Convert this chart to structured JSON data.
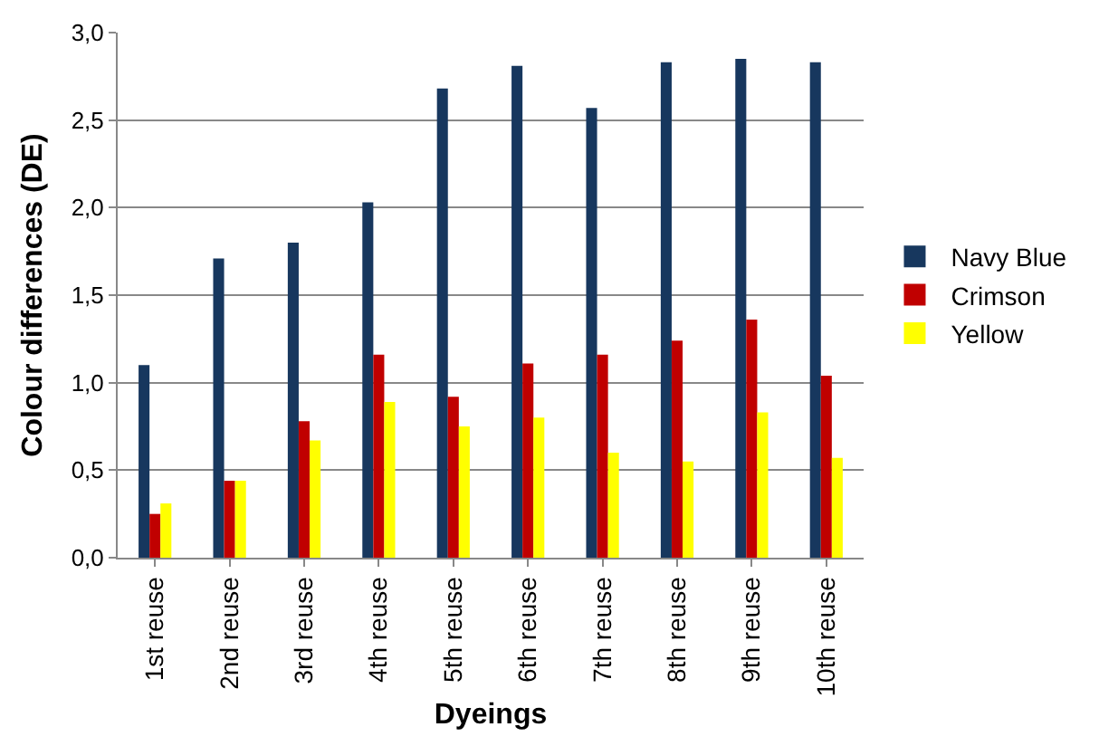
{
  "chart_data": {
    "type": "bar",
    "xlabel": "Dyeings",
    "ylabel": "Colour differences (DE)",
    "categories": [
      "1st reuse",
      "2nd reuse",
      "3rd reuse",
      "4th reuse",
      "5th reuse",
      "6th reuse",
      "7th reuse",
      "8th reuse",
      "9th reuse",
      "10th reuse"
    ],
    "series": [
      {
        "name": "Navy Blue",
        "color": "#17375e",
        "values": [
          1.1,
          1.71,
          1.8,
          2.03,
          2.68,
          2.81,
          2.57,
          2.83,
          2.85,
          2.83
        ]
      },
      {
        "name": "Crimson",
        "color": "#c00000",
        "values": [
          0.25,
          0.44,
          0.78,
          1.16,
          0.92,
          1.11,
          1.16,
          1.24,
          1.36,
          1.04
        ]
      },
      {
        "name": "Yellow",
        "color": "#ffff00",
        "values": [
          0.31,
          0.44,
          0.67,
          0.89,
          0.75,
          0.8,
          0.6,
          0.55,
          0.83,
          0.57
        ]
      }
    ],
    "ylim": [
      0,
      3
    ],
    "yticks": [
      {
        "value": 0,
        "label": "0,0"
      },
      {
        "value": 0.5,
        "label": "0,5"
      },
      {
        "value": 1,
        "label": "1,0"
      },
      {
        "value": 1.5,
        "label": "1,5"
      },
      {
        "value": 2,
        "label": "2,0"
      },
      {
        "value": 2.5,
        "label": "2,5"
      },
      {
        "value": 3,
        "label": "3,0"
      }
    ],
    "grid": "y",
    "legend": "right"
  }
}
